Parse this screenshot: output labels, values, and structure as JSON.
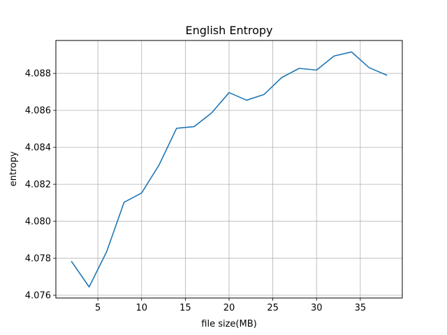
{
  "chart_data": {
    "type": "line",
    "title": "English Entropy",
    "xlabel": "file size(MB)",
    "ylabel": "entropy",
    "xlim": [
      0.2,
      39.8
    ],
    "ylim": [
      4.07585,
      4.08978
    ],
    "x_ticks": [
      5,
      10,
      15,
      20,
      25,
      30,
      35
    ],
    "y_ticks": [
      4.076,
      4.078,
      4.08,
      4.082,
      4.084,
      4.086,
      4.088
    ],
    "y_tick_labels": [
      "4.076",
      "4.078",
      "4.080",
      "4.082",
      "4.084",
      "4.086",
      "4.088"
    ],
    "grid": true,
    "legend": "none",
    "colors": {
      "line": "#1f77b4",
      "grid": "#b0b0b0",
      "axes": "#000000"
    },
    "series": [
      {
        "x": [
          2,
          4,
          6,
          8,
          10,
          12,
          14,
          16,
          18,
          20,
          22,
          24,
          26,
          28,
          30,
          32,
          34,
          36,
          38
        ],
        "values": [
          4.07782,
          4.07645,
          4.07835,
          4.08103,
          4.08153,
          4.08305,
          4.08503,
          4.08512,
          4.08586,
          4.08696,
          4.08655,
          4.08686,
          4.08777,
          4.08827,
          4.08818,
          4.08894,
          4.08916,
          4.08831,
          4.08791
        ]
      }
    ]
  }
}
